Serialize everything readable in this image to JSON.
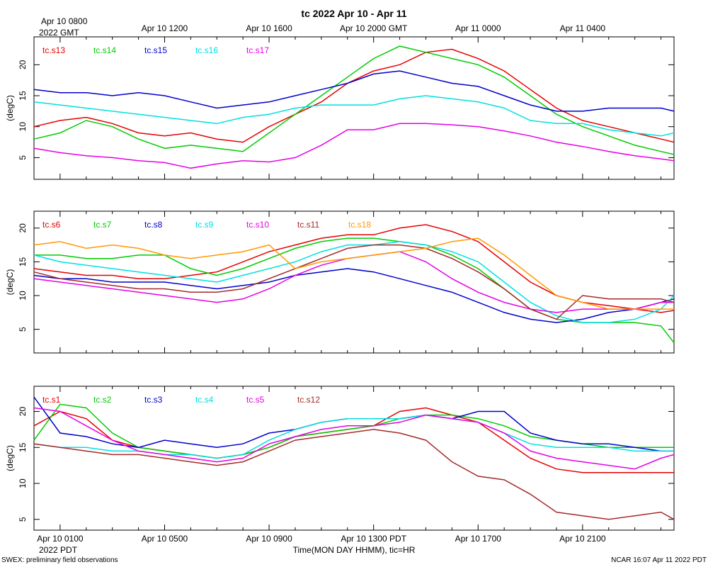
{
  "title": "tc 2022 Apr 10 - Apr 11",
  "gmt_axis": {
    "first_label": "Apr 10 0800",
    "first_label_sub": "2022 GMT",
    "labels": [
      "Apr 10 1200",
      "Apr 10 1600",
      "Apr 10 2000 GMT",
      "Apr 11 0000",
      "Apr 11 0400"
    ]
  },
  "pdt_axis": {
    "labels": [
      "Apr 10 0100",
      "Apr 10 0500",
      "Apr 10 0900",
      "Apr 10 1300 PDT",
      "Apr 10 1700",
      "Apr 10 2100"
    ],
    "sub_label": "2022 PDT",
    "xlabel": "Time(MON DAY HHMM), tic=HR"
  },
  "footer": {
    "left": "SWEX: preliminary field observations",
    "right": "NCAR 16:07 Apr 11 2022 PDT"
  },
  "chart_data": [
    {
      "type": "line",
      "ylabel": "(degC)",
      "ylim": [
        1.5,
        24.5
      ],
      "yticks": [
        5,
        10,
        15,
        20
      ],
      "xlim_hours_pdt": [
        0,
        24.5
      ],
      "series": [
        {
          "name": "tc.s13",
          "color": "#e60000",
          "x": [
            0,
            1,
            2,
            3,
            4,
            5,
            6,
            7,
            8,
            9,
            10,
            11,
            12,
            13,
            14,
            15,
            16,
            17,
            18,
            19,
            20,
            21,
            22,
            23,
            24,
            24.5
          ],
          "values": [
            10,
            11,
            11.5,
            10.5,
            9,
            8.5,
            9,
            8,
            7.5,
            10,
            12,
            14,
            17,
            19,
            20,
            22,
            22.5,
            21,
            19,
            16,
            13,
            11,
            10,
            9,
            8,
            7.5
          ]
        },
        {
          "name": "tc.s14",
          "color": "#00cc00",
          "x": [
            0,
            1,
            2,
            3,
            4,
            5,
            6,
            7,
            8,
            9,
            10,
            11,
            12,
            13,
            14,
            15,
            16,
            17,
            18,
            19,
            20,
            21,
            22,
            23,
            24,
            24.5
          ],
          "values": [
            8,
            9,
            11,
            10,
            8,
            6.5,
            7,
            6.5,
            6,
            9,
            12,
            15,
            18,
            21,
            23,
            22,
            21,
            20,
            18,
            15,
            12,
            10,
            8.5,
            7,
            6,
            5.5
          ]
        },
        {
          "name": "tc.s15",
          "color": "#0000cc",
          "x": [
            0,
            1,
            2,
            3,
            4,
            5,
            6,
            7,
            8,
            9,
            10,
            11,
            12,
            13,
            14,
            15,
            16,
            17,
            18,
            19,
            20,
            21,
            22,
            23,
            24,
            24.5
          ],
          "values": [
            16,
            15.5,
            15.5,
            15,
            15.5,
            15,
            14,
            13,
            13.5,
            14,
            15,
            16,
            17,
            18.5,
            19,
            18,
            17,
            16.5,
            15,
            13.5,
            12.5,
            12.5,
            13,
            13,
            13,
            12.5
          ]
        },
        {
          "name": "tc.s16",
          "color": "#00e0e0",
          "x": [
            0,
            1,
            2,
            3,
            4,
            5,
            6,
            7,
            8,
            9,
            10,
            11,
            12,
            13,
            14,
            15,
            16,
            17,
            18,
            19,
            20,
            21,
            22,
            23,
            24,
            24.5
          ],
          "values": [
            14,
            13.5,
            13,
            12.5,
            12,
            11.5,
            11,
            10.5,
            11.5,
            12,
            13,
            13.5,
            13.5,
            13.5,
            14.5,
            15,
            14.5,
            14,
            13,
            11,
            10.5,
            10.5,
            9.5,
            9,
            8.5,
            9
          ]
        },
        {
          "name": "tc.s17",
          "color": "#e600e6",
          "x": [
            0,
            1,
            2,
            3,
            4,
            5,
            6,
            7,
            8,
            9,
            10,
            11,
            12,
            13,
            14,
            15,
            16,
            17,
            18,
            19,
            20,
            21,
            22,
            23,
            24,
            24.5
          ],
          "values": [
            6.5,
            5.8,
            5.3,
            5,
            4.5,
            4.2,
            3.3,
            4,
            4.5,
            4.3,
            5,
            7,
            9.5,
            9.5,
            10.5,
            10.5,
            10.3,
            10,
            9.3,
            8.5,
            7.5,
            6.8,
            6,
            5.3,
            4.8,
            4.5
          ]
        }
      ]
    },
    {
      "type": "line",
      "ylabel": "(degC)",
      "ylim": [
        1.5,
        22.5
      ],
      "yticks": [
        5,
        10,
        15,
        20
      ],
      "xlim_hours_pdt": [
        0,
        24.5
      ],
      "series": [
        {
          "name": "tc.s6",
          "color": "#e60000",
          "x": [
            0,
            1,
            2,
            3,
            4,
            5,
            6,
            7,
            8,
            9,
            10,
            11,
            12,
            13,
            14,
            15,
            16,
            17,
            18,
            19,
            20,
            21,
            22,
            23,
            24,
            24.5
          ],
          "values": [
            14,
            13.5,
            13,
            13,
            12.5,
            12.5,
            13,
            13.5,
            15,
            16.5,
            17.5,
            18.5,
            19,
            19,
            20,
            20.5,
            19.5,
            18,
            15,
            12,
            10,
            9,
            8.5,
            8,
            7.5,
            7.8
          ]
        },
        {
          "name": "tc.s7",
          "color": "#00cc00",
          "x": [
            0,
            1,
            2,
            3,
            4,
            5,
            6,
            7,
            8,
            9,
            10,
            11,
            12,
            13,
            14,
            15,
            16,
            17,
            18,
            19,
            20,
            21,
            22,
            23,
            24,
            24.5
          ],
          "values": [
            16,
            16,
            15.5,
            15.5,
            16,
            16,
            14,
            13,
            14,
            15.5,
            17,
            18,
            18.5,
            18.5,
            18,
            17.5,
            16,
            14,
            11,
            8,
            6.5,
            6,
            6,
            6,
            5.5,
            3
          ]
        },
        {
          "name": "tc.s8",
          "color": "#0000cc",
          "x": [
            0,
            1,
            2,
            3,
            4,
            5,
            6,
            7,
            8,
            9,
            10,
            11,
            12,
            13,
            14,
            15,
            16,
            17,
            18,
            19,
            20,
            21,
            22,
            23,
            24,
            24.5
          ],
          "values": [
            13,
            12.5,
            12.5,
            12,
            12,
            12,
            11.5,
            11,
            11.5,
            12,
            13,
            13.5,
            14,
            13.5,
            12.5,
            11.5,
            10.5,
            9,
            7.5,
            6.5,
            6,
            6.5,
            7.5,
            8,
            9,
            9.5
          ]
        },
        {
          "name": "tc.s9",
          "color": "#00e0e0",
          "x": [
            0,
            1,
            2,
            3,
            4,
            5,
            6,
            7,
            8,
            9,
            10,
            11,
            12,
            13,
            14,
            15,
            16,
            17,
            18,
            19,
            20,
            21,
            22,
            23,
            24,
            24.5
          ],
          "values": [
            16,
            15,
            14.5,
            14,
            13.5,
            13,
            12.5,
            12,
            13,
            14,
            15,
            16.5,
            17.5,
            17.5,
            18,
            17.5,
            16.5,
            15,
            12,
            9,
            7,
            6,
            6,
            6.5,
            8,
            10
          ]
        },
        {
          "name": "tc.s10",
          "color": "#e600e6",
          "x": [
            0,
            1,
            2,
            3,
            4,
            5,
            6,
            7,
            8,
            9,
            10,
            11,
            12,
            13,
            14,
            15,
            16,
            17,
            18,
            19,
            20,
            21,
            22,
            23,
            24,
            24.5
          ],
          "values": [
            12.5,
            12,
            11.5,
            11,
            10.5,
            10,
            9.5,
            9,
            9.5,
            11,
            13,
            14.5,
            15.5,
            16,
            16.5,
            15,
            12.5,
            10.5,
            9,
            8,
            7.5,
            8,
            8,
            8,
            9,
            9
          ]
        },
        {
          "name": "tc.s11",
          "color": "#a52a2a",
          "x": [
            0,
            1,
            2,
            3,
            4,
            5,
            6,
            7,
            8,
            9,
            10,
            11,
            12,
            13,
            14,
            15,
            16,
            17,
            18,
            19,
            20,
            21,
            22,
            23,
            24,
            24.5
          ],
          "values": [
            13.5,
            12.5,
            12,
            11.5,
            11,
            11,
            10.5,
            10.5,
            11,
            12.5,
            14,
            15.5,
            17,
            17.5,
            17.5,
            17,
            15.5,
            13.5,
            11,
            8,
            6.5,
            10,
            9.5,
            9.5,
            9.5,
            9
          ]
        },
        {
          "name": "tc.s18",
          "color": "#ff9900",
          "x": [
            0,
            1,
            2,
            3,
            4,
            5,
            6,
            7,
            8,
            9,
            10,
            11,
            12,
            13,
            14,
            15,
            16,
            17,
            18,
            19,
            20,
            21,
            22,
            23,
            24,
            24.5
          ],
          "values": [
            17.5,
            18,
            17,
            17.5,
            17,
            16,
            15.5,
            16,
            16.5,
            17.5,
            14,
            15,
            15.5,
            16,
            16.5,
            17,
            18,
            18.5,
            16,
            13,
            10,
            9,
            8,
            8,
            8,
            8
          ]
        }
      ]
    },
    {
      "type": "line",
      "ylabel": "(degC)",
      "ylim": [
        3.5,
        23.5
      ],
      "yticks": [
        5,
        10,
        15,
        20
      ],
      "xlim_hours_pdt": [
        0,
        24.5
      ],
      "series": [
        {
          "name": "tc.s1",
          "color": "#e60000",
          "x": [
            0,
            1,
            2,
            3,
            4,
            5,
            6,
            7,
            8,
            9,
            10,
            11,
            12,
            13,
            14,
            15,
            16,
            17,
            18,
            19,
            20,
            21,
            22,
            23,
            24,
            24.5
          ],
          "values": [
            18,
            20,
            19,
            16,
            15,
            14.5,
            14,
            13.5,
            14,
            15,
            16.5,
            17,
            17.5,
            18,
            20,
            20.5,
            19.5,
            18.5,
            16,
            13.5,
            12,
            11.5,
            11.5,
            11.5,
            11.5,
            11.5
          ]
        },
        {
          "name": "tc.s2",
          "color": "#00cc00",
          "x": [
            0,
            1,
            2,
            3,
            4,
            5,
            6,
            7,
            8,
            9,
            10,
            11,
            12,
            13,
            14,
            15,
            16,
            17,
            18,
            19,
            20,
            21,
            22,
            23,
            24,
            24.5
          ],
          "values": [
            16,
            21,
            20.5,
            17,
            15,
            14.5,
            14,
            13.5,
            14,
            15,
            16.5,
            17,
            17.5,
            18,
            19,
            19.5,
            19.5,
            19,
            18,
            16.5,
            16,
            15.5,
            15,
            15,
            15,
            15
          ]
        },
        {
          "name": "tc.s3",
          "color": "#0000cc",
          "x": [
            0,
            1,
            2,
            3,
            4,
            5,
            6,
            7,
            8,
            9,
            10,
            11,
            12,
            13,
            14,
            15,
            16,
            17,
            18,
            19,
            20,
            21,
            22,
            23,
            24,
            24.5
          ],
          "values": [
            22,
            17,
            16.5,
            15.5,
            15,
            16,
            15.5,
            15,
            15.5,
            17,
            17.5,
            18.5,
            19,
            19,
            19,
            19.5,
            19,
            20,
            20,
            17,
            16,
            15.5,
            15.5,
            15,
            14.5,
            14.5
          ]
        },
        {
          "name": "tc.s4",
          "color": "#00e0e0",
          "x": [
            0,
            1,
            2,
            3,
            4,
            5,
            6,
            7,
            8,
            9,
            10,
            11,
            12,
            13,
            14,
            15,
            16,
            17,
            18,
            19,
            20,
            21,
            22,
            23,
            24,
            24.5
          ],
          "values": [
            15.5,
            15,
            15,
            14.5,
            14.5,
            14,
            14,
            13.5,
            14,
            16,
            17.5,
            18.5,
            19,
            19,
            19,
            19.5,
            19,
            18.5,
            17,
            15.5,
            15,
            15,
            15,
            14.5,
            14.5,
            14.5
          ]
        },
        {
          "name": "tc.s5",
          "color": "#e600e6",
          "x": [
            0,
            1,
            2,
            3,
            4,
            5,
            6,
            7,
            8,
            9,
            10,
            11,
            12,
            13,
            14,
            15,
            16,
            17,
            18,
            19,
            20,
            21,
            22,
            23,
            24,
            24.5
          ],
          "values": [
            20.5,
            20,
            18,
            16,
            14.5,
            14,
            13.5,
            13,
            13.5,
            15.5,
            16.5,
            17.5,
            18,
            18,
            18.5,
            19.5,
            19,
            18.5,
            17,
            14.5,
            13.5,
            13,
            12.5,
            12,
            13.5,
            14
          ]
        },
        {
          "name": "tc.s12",
          "color": "#a52a2a",
          "x": [
            0,
            1,
            2,
            3,
            4,
            5,
            6,
            7,
            8,
            9,
            10,
            11,
            12,
            13,
            14,
            15,
            16,
            17,
            18,
            19,
            20,
            21,
            22,
            23,
            24,
            24.5
          ],
          "values": [
            15.5,
            15,
            14.5,
            14,
            14,
            13.5,
            13,
            12.5,
            13,
            14.5,
            16,
            16.5,
            17,
            17.5,
            17,
            16,
            13,
            11,
            10.5,
            8.5,
            6,
            5.5,
            5,
            5.5,
            6,
            5
          ]
        }
      ]
    }
  ]
}
